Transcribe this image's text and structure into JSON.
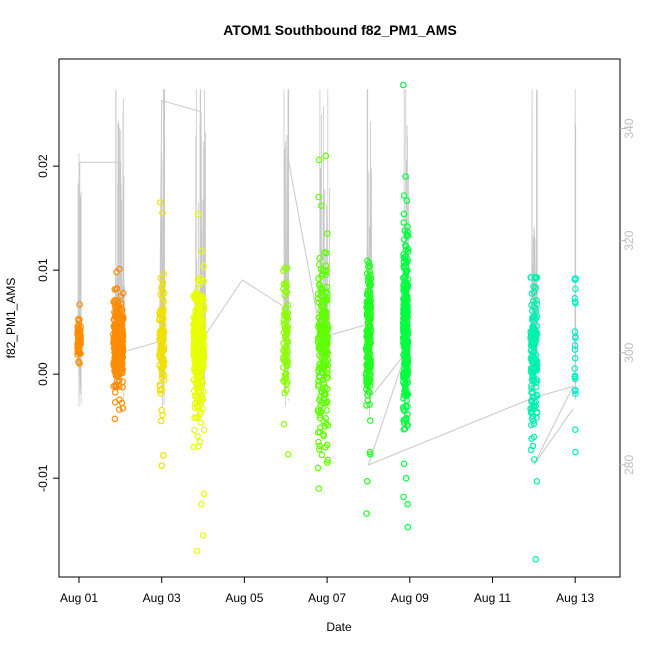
{
  "chart_data": {
    "type": "scatter",
    "title": "ATOM1 Southbound f82_PM1_AMS",
    "xlabel": "Date",
    "ylabel": "f82_PM1_AMS",
    "xlim_days": [
      0.0,
      12.6
    ],
    "ylim": [
      -0.0195,
      0.0303
    ],
    "x_ticks": [
      {
        "day": 0,
        "label": "Aug 01"
      },
      {
        "day": 2,
        "label": "Aug 03"
      },
      {
        "day": 4,
        "label": "Aug 05"
      },
      {
        "day": 6,
        "label": "Aug 07"
      },
      {
        "day": 8,
        "label": "Aug 09"
      },
      {
        "day": 10,
        "label": "Aug 11"
      },
      {
        "day": 12,
        "label": "Aug 13"
      }
    ],
    "y_ticks": [
      {
        "value": -0.01,
        "label": "-0.01"
      },
      {
        "value": 0.0,
        "label": "0.00"
      },
      {
        "value": 0.01,
        "label": "0.01"
      },
      {
        "value": 0.02,
        "label": "0.02"
      }
    ],
    "secondary_axis": {
      "label_color": "#bdbdbd",
      "ylim": [
        260.0,
        352.4
      ],
      "ticks": [
        {
          "value": 280,
          "label": "280"
        },
        {
          "value": 300,
          "label": "300"
        },
        {
          "value": 320,
          "label": "320"
        },
        {
          "value": 340,
          "label": "340"
        }
      ],
      "line_color": "#c8c8c8"
    },
    "clusters": [
      {
        "day": 0.0,
        "spread": 0.04,
        "color": "#ff8c00",
        "n": 70,
        "mean": 0.0032,
        "sd": 0.0012,
        "min": 0.001,
        "max": 0.0068,
        "extra": [
          0.0067,
          0.0012
        ]
      },
      {
        "day": 0.95,
        "spread": 0.12,
        "color": "#ff8c00",
        "n": 260,
        "mean": 0.003,
        "sd": 0.0022,
        "min": -0.0045,
        "max": 0.0102,
        "extra": [
          0.0101,
          -0.0043,
          -0.0027,
          0.0098
        ]
      },
      {
        "day": 2.0,
        "spread": 0.06,
        "color": "#f0e000",
        "n": 90,
        "mean": 0.0028,
        "sd": 0.003,
        "min": -0.009,
        "max": 0.0165,
        "extra": [
          0.0165,
          0.0155,
          0.0088,
          -0.0088,
          -0.0078,
          -0.0045
        ]
      },
      {
        "day": 2.9,
        "spread": 0.13,
        "color": "#e8ff00",
        "n": 280,
        "mean": 0.0025,
        "sd": 0.003,
        "min": -0.017,
        "max": 0.0155,
        "extra": [
          0.0154,
          0.0118,
          -0.0115,
          -0.0125,
          -0.0155,
          -0.017,
          -0.007
        ]
      },
      {
        "day": 5.0,
        "spread": 0.06,
        "color": "#8cff00",
        "n": 70,
        "mean": 0.003,
        "sd": 0.003,
        "min": -0.0078,
        "max": 0.0102,
        "extra": [
          0.0102,
          0.0088,
          -0.0077,
          -0.0048
        ]
      },
      {
        "day": 5.9,
        "spread": 0.12,
        "color": "#60ff00",
        "n": 220,
        "mean": 0.003,
        "sd": 0.0042,
        "min": -0.011,
        "max": 0.021,
        "extra": [
          0.021,
          0.0206,
          0.0162,
          -0.011,
          -0.009,
          -0.0085
        ]
      },
      {
        "day": 7.0,
        "spread": 0.06,
        "color": "#20ff20",
        "n": 160,
        "mean": 0.0035,
        "sd": 0.0035,
        "min": -0.0135,
        "max": 0.011,
        "extra": [
          0.0109,
          -0.0103,
          -0.0134,
          -0.0077
        ]
      },
      {
        "day": 7.9,
        "spread": 0.06,
        "color": "#00ff40",
        "n": 280,
        "mean": 0.004,
        "sd": 0.0042,
        "min": -0.0147,
        "max": 0.0278,
        "extra": [
          0.0278,
          0.019,
          0.0167,
          0.0138,
          -0.0147,
          -0.0125,
          -0.0118,
          -0.01
        ]
      },
      {
        "day": 11.0,
        "spread": 0.08,
        "color": "#00f0b0",
        "n": 150,
        "mean": 0.002,
        "sd": 0.0035,
        "min": -0.0178,
        "max": 0.0093,
        "extra": [
          0.0092,
          -0.0178,
          -0.0103,
          -0.0082
        ]
      },
      {
        "day": 12.0,
        "spread": 0.01,
        "color": "#00f0c8",
        "n": 20,
        "mean": 0.002,
        "sd": 0.0045,
        "min": -0.0075,
        "max": 0.0092,
        "extra": [
          0.0091,
          0.0082,
          -0.0075,
          0.0041
        ]
      }
    ],
    "secondary_track": [
      {
        "day": 0.0,
        "value": 298
      },
      {
        "day": 0.02,
        "value": 334
      },
      {
        "day": 1.0,
        "value": 334
      },
      {
        "day": 1.0,
        "value": 300
      },
      {
        "day": 1.95,
        "value": 302
      },
      {
        "day": 2.0,
        "value": 345
      },
      {
        "day": 2.95,
        "value": 343
      },
      {
        "day": 2.95,
        "value": 302
      },
      {
        "day": 3.95,
        "value": 313
      },
      {
        "day": 5.0,
        "value": 308
      },
      {
        "day": 5.05,
        "value": 335
      },
      {
        "day": 5.9,
        "value": 301
      },
      {
        "day": 6.0,
        "value": 303
      },
      {
        "day": 6.95,
        "value": 305
      },
      {
        "day": 7.05,
        "value": 292
      },
      {
        "day": 7.9,
        "value": 300
      },
      {
        "day": 7.0,
        "value": 280
      },
      {
        "day": 11.0,
        "value": 292
      },
      {
        "day": 11.95,
        "value": 294
      },
      {
        "day": 11.0,
        "value": 280
      },
      {
        "day": 11.95,
        "value": 290
      }
    ]
  }
}
